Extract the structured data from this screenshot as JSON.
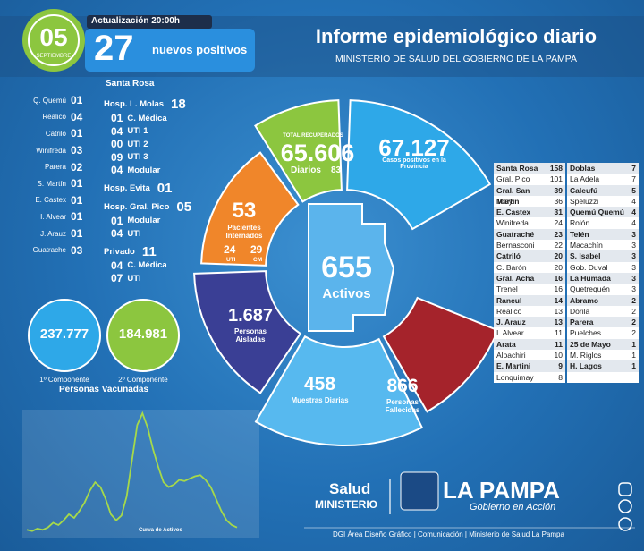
{
  "header": {
    "day": "05",
    "month": "SEPTIEMBRE",
    "update": "Actualización 20:00h",
    "new_count": "27",
    "new_label": "nuevos positivos",
    "title": "Informe epidemiológico diario",
    "subtitle": "MINISTERIO DE SALUD DEL GOBIERNO DE LA PAMPA"
  },
  "localities": [
    [
      "Q. Quemú",
      "01"
    ],
    [
      "Realicó",
      "04"
    ],
    [
      "Catriló",
      "01"
    ],
    [
      "Winifreda",
      "03"
    ],
    [
      "Parera",
      "02"
    ],
    [
      "S. Martín",
      "01"
    ],
    [
      "E. Castex",
      "01"
    ],
    [
      "I. Alvear",
      "01"
    ],
    [
      "J. Arauz",
      "01"
    ],
    [
      "Guatrache",
      "03"
    ]
  ],
  "santa_rosa": {
    "title": "Santa Rosa",
    "hospitals": [
      {
        "name": "Hosp. L. Molas",
        "total": "18",
        "units": [
          [
            "01",
            "C. Médica"
          ],
          [
            "04",
            "UTI 1"
          ],
          [
            "00",
            "UTI 2"
          ],
          [
            "09",
            "UTI 3"
          ],
          [
            "04",
            "Modular"
          ]
        ]
      },
      {
        "name": "Hosp. Evita",
        "total": "01"
      },
      {
        "name": "Hosp. Gral. Pico",
        "total": "05",
        "units": [
          [
            "01",
            "Modular"
          ],
          [
            "04",
            "UTI"
          ]
        ]
      },
      {
        "name": "Privado",
        "total": "11",
        "units": [
          [
            "04",
            "C. Médica"
          ],
          [
            "07",
            "UTI"
          ]
        ]
      }
    ]
  },
  "ring": {
    "recovered_label": "TOTAL RECUPERADOS",
    "recovered": "65.606",
    "daily_label": "Diarios",
    "daily": "83",
    "positives": "67.127",
    "positives_label": "Casos positivos en la Provincia",
    "hospitalized": "53",
    "hospitalized_label": "Pacientes Internados",
    "icu": "24",
    "icu_label": "UTI",
    "cm": "29",
    "cm_label": "CM",
    "active": "655",
    "active_label": "Activos",
    "isolated": "1.687",
    "isolated_label": "Personas Aisladas",
    "samples": "458",
    "samples_label": "Muestras Diarias",
    "deaths": "866",
    "deaths_label": "Personas Fallecidas"
  },
  "vaccines": {
    "dose1": "237.777",
    "dose1_label": "1º Componente",
    "dose2": "184.981",
    "dose2_label": "2º Componente",
    "title": "Personas Vacunadas"
  },
  "curve": {
    "title": "Curva de Activos",
    "color": "#a6d94a",
    "values": [
      2,
      1,
      3,
      2,
      4,
      8,
      6,
      10,
      15,
      12,
      18,
      25,
      35,
      42,
      38,
      28,
      15,
      10,
      14,
      30,
      60,
      90,
      100,
      88,
      70,
      55,
      42,
      38,
      40,
      44,
      43,
      45,
      47,
      48,
      44,
      38,
      28,
      18,
      10,
      6,
      4
    ]
  },
  "table": {
    "columns": [
      [
        [
          "Santa Rosa",
          158
        ],
        [
          "Gral. Pico",
          101
        ],
        [
          "Gral. San Martín",
          39
        ],
        [
          "Toay",
          36
        ],
        [
          "E. Castex",
          31
        ],
        [
          "Winifreda",
          24
        ],
        [
          "Guatraché",
          23
        ],
        [
          "Bernasconi",
          22
        ],
        [
          "Catriló",
          20
        ],
        [
          "C. Barón",
          20
        ],
        [
          "Gral. Acha",
          16
        ],
        [
          "Trenel",
          16
        ],
        [
          "Rancul",
          14
        ],
        [
          "Realicó",
          13
        ],
        [
          "J. Arauz",
          13
        ],
        [
          "I. Alvear",
          11
        ],
        [
          "Arata",
          11
        ],
        [
          "Alpachiri",
          10
        ],
        [
          "E. Martini",
          9
        ],
        [
          "Lonquimay",
          8
        ]
      ],
      [
        [
          "Doblas",
          7
        ],
        [
          "La Adela",
          7
        ],
        [
          "Caleufú",
          5
        ],
        [
          "Speluzzi",
          4
        ],
        [
          "Quemú Quemú",
          4
        ],
        [
          "Rolón",
          4
        ],
        [
          "Telén",
          3
        ],
        [
          "Macachín",
          3
        ],
        [
          "S. Isabel",
          3
        ],
        [
          "Gob. Duval",
          3
        ],
        [
          "La Humada",
          3
        ],
        [
          "Quetrequén",
          3
        ],
        [
          "Abramo",
          2
        ],
        [
          "Dorila",
          2
        ],
        [
          "Parera",
          2
        ],
        [
          "Puelches",
          2
        ],
        [
          "25 de Mayo",
          1
        ],
        [
          "M. Riglos",
          1
        ],
        [
          "H. Lagos",
          1
        ]
      ]
    ]
  },
  "footer": {
    "salud": "Salud",
    "ministry": "MINISTERIO",
    "province": "LA PAMPA",
    "slogan": "Gobierno en Acción",
    "credits": "DGI Área Diseño Gráfico | Comunicación | Ministerio de Salud La Pampa"
  }
}
